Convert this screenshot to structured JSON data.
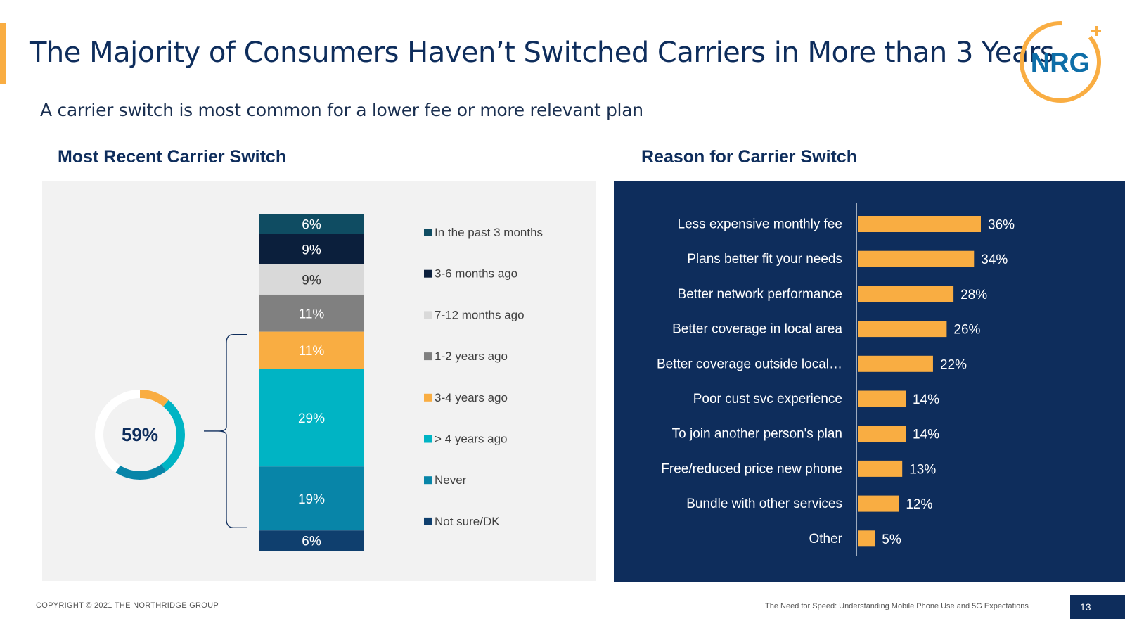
{
  "header": {
    "title": "The Majority of Consumers Haven’t Switched Carriers in More than 3 Years",
    "subtitle": "A carrier switch is most common for a lower fee or more relevant plan",
    "logo_text": "NRG"
  },
  "left_section": {
    "title": "Most Recent Carrier Switch"
  },
  "right_section": {
    "title": "Reason for Carrier Switch"
  },
  "colors": {
    "navy": "#0e2d5c",
    "orange": "#f9ad42",
    "teal_dark": "#0f4c62",
    "navy_darkest": "#0b1f3c",
    "light_gray": "#d9d9d9",
    "mid_gray": "#808080",
    "cyan": "#00b4c4",
    "teal": "#0885a8",
    "blue_dark": "#0f3f6e"
  },
  "chart_data": [
    {
      "type": "bar",
      "subtype": "stacked-100",
      "title": "Most Recent Carrier Switch",
      "categories": [
        "In the past 3 months",
        "3-6 months ago",
        "7-12 months ago",
        "1-2 years ago",
        "3-4 years ago",
        "> 4 years ago",
        "Never",
        "Not sure/DK"
      ],
      "values": [
        6,
        9,
        9,
        11,
        11,
        29,
        19,
        6
      ],
      "labels": [
        "6%",
        "9%",
        "9%",
        "11%",
        "11%",
        "29%",
        "19%",
        "6%"
      ],
      "colors": [
        "#0f4c62",
        "#0b1f3c",
        "#d9d9d9",
        "#808080",
        "#f9ad42",
        "#00b4c4",
        "#0885a8",
        "#0f3f6e"
      ],
      "legend_position": "right",
      "callout": {
        "type": "donut",
        "label": "59%",
        "value": 59,
        "segments": [
          11,
          29,
          19
        ],
        "segment_colors": [
          "#f9ad42",
          "#00b4c4",
          "#0885a8"
        ]
      }
    },
    {
      "type": "bar",
      "orientation": "horizontal",
      "title": "Reason for Carrier Switch",
      "categories": [
        "Less expensive monthly fee",
        "Plans better fit your needs",
        "Better network performance",
        "Better coverage in  local area",
        "Better coverage outside local…",
        "Poor cust svc experience",
        "To join another person's plan",
        "Free/reduced price new phone",
        "Bundle with other services",
        "Other"
      ],
      "values": [
        36,
        34,
        28,
        26,
        22,
        14,
        14,
        13,
        12,
        5
      ],
      "labels": [
        "36%",
        "34%",
        "28%",
        "26%",
        "22%",
        "14%",
        "14%",
        "13%",
        "12%",
        "5%"
      ],
      "color": "#f9ad42",
      "xlim": [
        0,
        40
      ]
    }
  ],
  "footer": {
    "copyright": "COPYRIGHT © 2021 THE NORTHRIDGE GROUP",
    "report_title": "The Need for Speed: Understanding Mobile Phone Use and 5G Expectations",
    "page_number": "13"
  }
}
